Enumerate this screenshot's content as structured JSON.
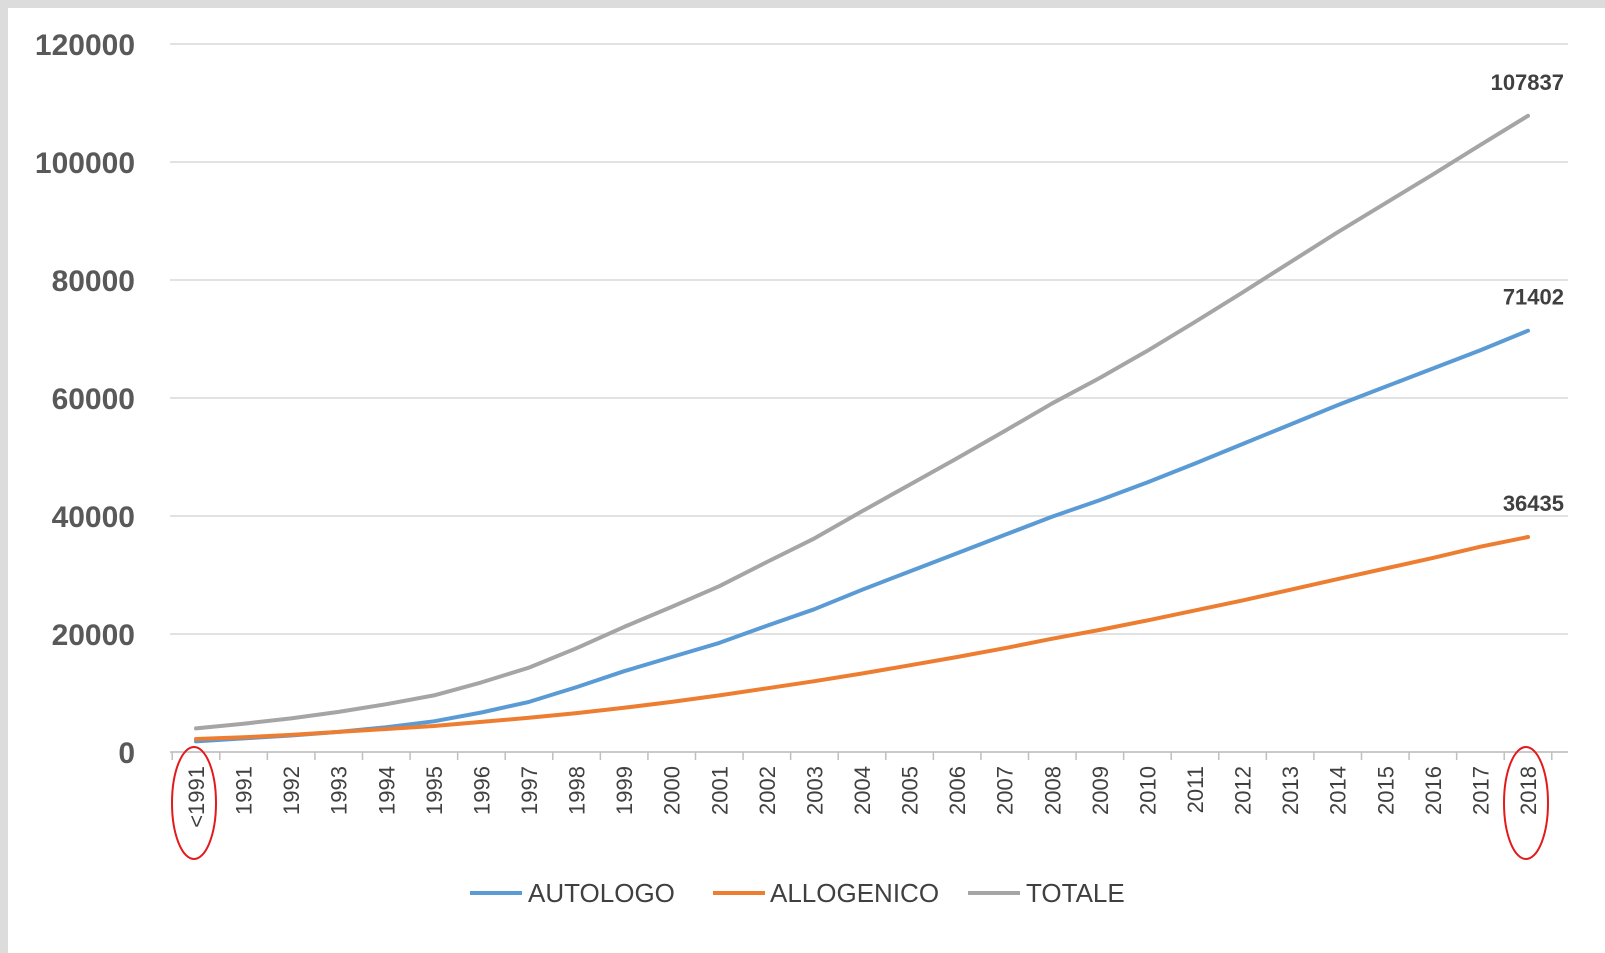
{
  "chart_data": {
    "type": "line",
    "categories": [
      "<1991",
      "1991",
      "1992",
      "1993",
      "1994",
      "1995",
      "1996",
      "1997",
      "1998",
      "1999",
      "2000",
      "2001",
      "2002",
      "2003",
      "2004",
      "2005",
      "2006",
      "2007",
      "2008",
      "2009",
      "2010",
      "2011",
      "2012",
      "2013",
      "2014",
      "2015",
      "2016",
      "2017",
      "2018"
    ],
    "series": [
      {
        "name": "AUTOLOGO",
        "color": "#5b9bd5",
        "values": [
          1800,
          2300,
          2800,
          3400,
          4200,
          5200,
          6700,
          8500,
          11000,
          13700,
          16100,
          18500,
          21400,
          24200,
          27500,
          30600,
          33700,
          36800,
          39900,
          42700,
          45700,
          48900,
          52200,
          55500,
          58800,
          61900,
          65000,
          68100,
          71402
        ]
      },
      {
        "name": "ALLOGENICO",
        "color": "#ed7d31",
        "values": [
          2200,
          2500,
          2900,
          3400,
          3900,
          4400,
          5100,
          5800,
          6600,
          7500,
          8500,
          9600,
          10800,
          12000,
          13300,
          14700,
          16100,
          17600,
          19200,
          20700,
          22300,
          24000,
          25700,
          27500,
          29300,
          31100,
          32900,
          34800,
          36435
        ]
      },
      {
        "name": "TOTALE",
        "color": "#a5a5a5",
        "values": [
          4000,
          4800,
          5700,
          6800,
          8100,
          9600,
          11800,
          14300,
          17600,
          21200,
          24600,
          28100,
          32200,
          36200,
          40800,
          45300,
          49800,
          54400,
          59100,
          63400,
          68000,
          72900,
          77900,
          83000,
          88100,
          93000,
          97900,
          102900,
          107837
        ]
      }
    ],
    "data_labels": [
      {
        "series": "TOTALE",
        "text": "107837"
      },
      {
        "series": "AUTOLOGO",
        "text": "71402"
      },
      {
        "series": "ALLOGENICO",
        "text": "36435"
      }
    ],
    "yticks": [
      "0",
      "20000",
      "40000",
      "60000",
      "80000",
      "100000",
      "120000"
    ],
    "ylim": [
      0,
      120000
    ],
    "grid": "horizontal",
    "legend": "bottom-center",
    "highlighted_categories": [
      "<1991",
      "2018"
    ],
    "highlight_color": "#e31a1c"
  }
}
